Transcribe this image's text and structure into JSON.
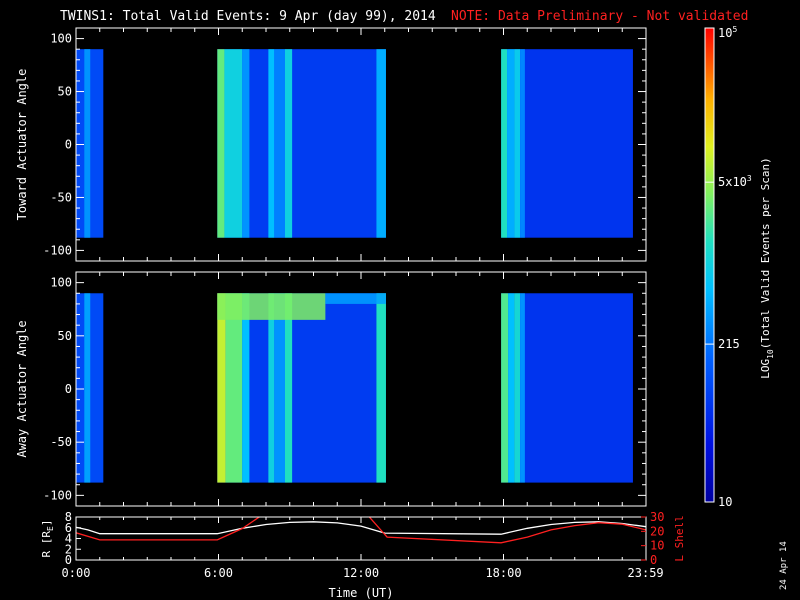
{
  "header": {
    "title": "TWINS1: Total Valid Events:  9 Apr (day  99), 2014",
    "note": "NOTE: Data Preliminary - Not validated",
    "note_color": "#ff2020",
    "date_stamp": "24 Apr 14"
  },
  "colorbar": {
    "label": "LOG10(Total Valid Events per Scan)",
    "label_base": "LOG",
    "label_sub": "10",
    "label_rest": "(Total Valid Events per Scan)",
    "ticks": [
      {
        "value": 100000,
        "text": "10",
        "sup": "5"
      },
      {
        "value": 5000,
        "text": "5x10",
        "sup": "3"
      },
      {
        "value": 215,
        "text": "215",
        "sup": ""
      },
      {
        "value": 10,
        "text": "10",
        "sup": ""
      }
    ],
    "range": [
      10,
      100000
    ],
    "scale": "log"
  },
  "chart_data": [
    {
      "type": "heatmap",
      "ylabel": "Toward Actuator Angle",
      "xlim_hours": [
        0,
        24
      ],
      "ylim": [
        -110,
        110
      ],
      "yticks": [
        100,
        50,
        0,
        -50,
        -100
      ],
      "data_extent_deg": [
        -88,
        90
      ],
      "segments": [
        {
          "start_h": 0.0,
          "end_h": 1.15,
          "level": 0.25
        },
        {
          "start_h": 5.95,
          "end_h": 13.05,
          "level": 0.22
        },
        {
          "start_h": 17.9,
          "end_h": 23.45,
          "level": 0.2
        }
      ],
      "stripes": [
        {
          "start_h": 0.35,
          "end_h": 0.6,
          "level": 0.38
        },
        {
          "start_h": 5.95,
          "end_h": 6.25,
          "level": 0.62
        },
        {
          "start_h": 6.25,
          "end_h": 7.0,
          "level": 0.5
        },
        {
          "start_h": 7.0,
          "end_h": 7.3,
          "level": 0.38
        },
        {
          "start_h": 8.1,
          "end_h": 8.35,
          "level": 0.45
        },
        {
          "start_h": 8.35,
          "end_h": 8.8,
          "level": 0.35
        },
        {
          "start_h": 8.8,
          "end_h": 9.1,
          "level": 0.5
        },
        {
          "start_h": 12.65,
          "end_h": 13.05,
          "level": 0.42
        },
        {
          "start_h": 17.9,
          "end_h": 18.15,
          "level": 0.55
        },
        {
          "start_h": 18.15,
          "end_h": 18.45,
          "level": 0.42
        },
        {
          "start_h": 18.45,
          "end_h": 18.7,
          "level": 0.48
        },
        {
          "start_h": 18.7,
          "end_h": 18.9,
          "level": 0.36
        }
      ]
    },
    {
      "type": "heatmap",
      "ylabel": "Away Actuator Angle",
      "xlim_hours": [
        0,
        24
      ],
      "ylim": [
        -110,
        110
      ],
      "yticks": [
        100,
        50,
        0,
        -50,
        -100
      ],
      "data_extent_deg": [
        -88,
        90
      ],
      "segments": [
        {
          "start_h": 0.0,
          "end_h": 1.15,
          "level": 0.25
        },
        {
          "start_h": 5.95,
          "end_h": 13.05,
          "level": 0.22
        },
        {
          "start_h": 17.9,
          "end_h": 23.45,
          "level": 0.2
        }
      ],
      "stripes": [
        {
          "start_h": 0.35,
          "end_h": 0.6,
          "level": 0.4
        },
        {
          "start_h": 5.95,
          "end_h": 6.3,
          "level": 0.72
        },
        {
          "start_h": 6.3,
          "end_h": 7.0,
          "level": 0.62
        },
        {
          "start_h": 7.0,
          "end_h": 7.3,
          "level": 0.45
        },
        {
          "start_h": 8.1,
          "end_h": 8.35,
          "level": 0.5
        },
        {
          "start_h": 8.35,
          "end_h": 8.8,
          "level": 0.38
        },
        {
          "start_h": 8.8,
          "end_h": 9.1,
          "level": 0.55
        },
        {
          "start_h": 12.65,
          "end_h": 13.05,
          "level": 0.55
        },
        {
          "start_h": 17.9,
          "end_h": 18.2,
          "level": 0.6
        },
        {
          "start_h": 18.2,
          "end_h": 18.45,
          "level": 0.45
        },
        {
          "start_h": 18.45,
          "end_h": 18.7,
          "level": 0.52
        },
        {
          "start_h": 18.7,
          "end_h": 18.9,
          "level": 0.38
        }
      ],
      "bands": [
        {
          "start_h": 5.95,
          "end_h": 10.5,
          "deg_from": 65,
          "deg_to": 90,
          "level": 0.65
        },
        {
          "start_h": 10.5,
          "end_h": 13.05,
          "deg_from": 80,
          "deg_to": 90,
          "level": 0.4
        }
      ]
    },
    {
      "type": "line",
      "ylabel": "R [RE]",
      "ylabel_base": "R [R",
      "ylabel_sub": "E",
      "ylabel_end": "]",
      "y2label": "L Shell",
      "xlabel": "Time (UT)",
      "xlim_hours": [
        0,
        24
      ],
      "ylim": [
        0,
        8
      ],
      "yticks": [
        0,
        2,
        4,
        6,
        8
      ],
      "y2lim": [
        0,
        30
      ],
      "y2ticks": [
        0,
        10,
        20,
        30
      ],
      "xticks": [
        {
          "hour": 0,
          "label": "0:00"
        },
        {
          "hour": 6,
          "label": "6:00"
        },
        {
          "hour": 12,
          "label": "12:00"
        },
        {
          "hour": 18,
          "label": "18:00"
        },
        {
          "hour": 23.983,
          "label": "23:59"
        }
      ],
      "series": [
        {
          "axis": "left",
          "color": "#ffffff",
          "x": [
            0,
            0.5,
            1.0,
            5.95,
            7,
            8,
            9,
            10,
            11,
            12,
            13,
            17.9,
            19,
            20,
            21,
            22,
            23,
            24
          ],
          "y": [
            6.1,
            5.6,
            4.9,
            4.9,
            5.9,
            6.6,
            7.0,
            7.1,
            6.9,
            6.3,
            5.0,
            4.8,
            5.9,
            6.6,
            7.0,
            7.1,
            6.8,
            6.2
          ]
        },
        {
          "axis": "right",
          "color": "#ff2020",
          "x": [
            0,
            1.0,
            5.95,
            7,
            7.8,
            12.3,
            13.1,
            17.9,
            19,
            20,
            21,
            22,
            23,
            24
          ],
          "y": [
            19,
            14,
            14,
            22,
            31,
            31,
            16,
            12,
            16,
            21,
            24,
            26,
            25,
            21
          ]
        }
      ]
    }
  ]
}
